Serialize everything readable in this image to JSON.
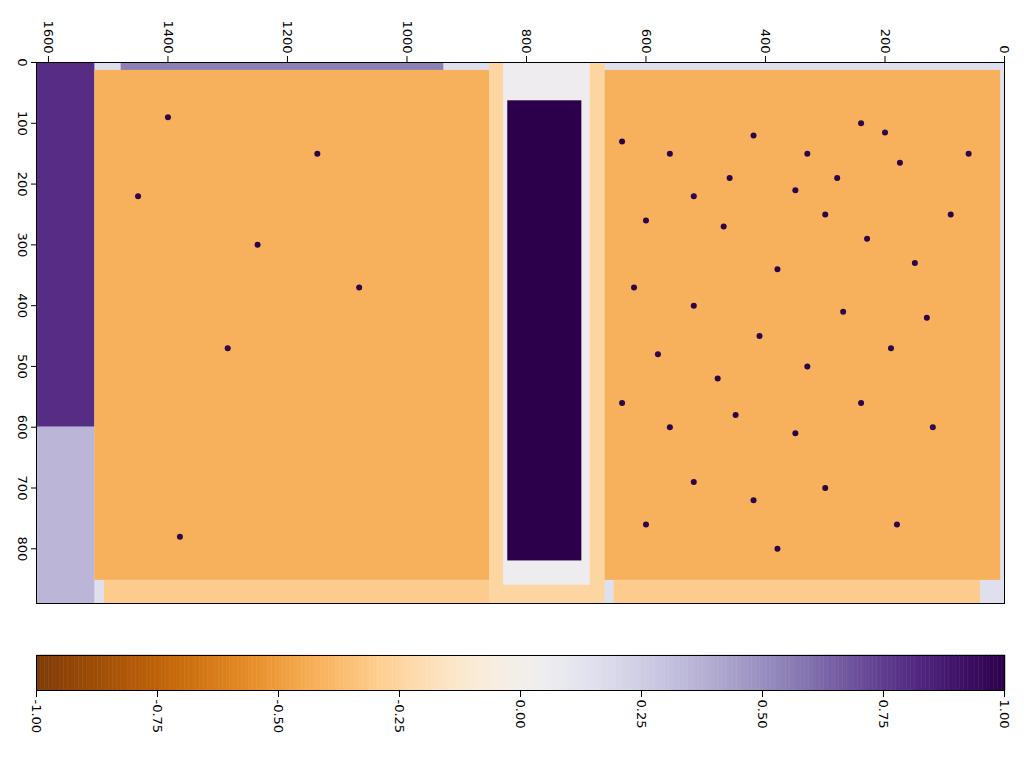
{
  "chart_data": {
    "type": "heatmap",
    "xlim": [
      0,
      890
    ],
    "ylim": [
      0,
      1620
    ],
    "xticks": [
      0,
      100,
      200,
      300,
      400,
      500,
      600,
      700,
      800
    ],
    "yticks": [
      0,
      200,
      400,
      600,
      800,
      1000,
      1200,
      1400,
      1600
    ],
    "regions": [
      {
        "x0": 0,
        "x1": 890,
        "y0": 0,
        "y1": 1620,
        "value": 0.15
      },
      {
        "x0": 0,
        "x1": 600,
        "y0": 1524,
        "y1": 1620,
        "value": 0.8
      },
      {
        "x0": 600,
        "x1": 890,
        "y0": 1524,
        "y1": 1620,
        "value": 0.35
      },
      {
        "x0": 0,
        "x1": 30,
        "y0": 940,
        "y1": 1480,
        "value": 0.55
      },
      {
        "x0": 13,
        "x1": 852,
        "y0": 863,
        "y1": 1524,
        "value": -0.42
      },
      {
        "x0": 852,
        "x1": 890,
        "y0": 863,
        "y1": 1508,
        "value": -0.3
      },
      {
        "x0": 0,
        "x1": 890,
        "y0": 670,
        "y1": 863,
        "value": -0.25
      },
      {
        "x0": 0,
        "x1": 860,
        "y0": 695,
        "y1": 840,
        "value": 0.05
      },
      {
        "x0": 63,
        "x1": 820,
        "y0": 709,
        "y1": 833,
        "value": 1
      },
      {
        "x0": 13,
        "x1": 852,
        "y0": 8,
        "y1": 670,
        "value": -0.42
      },
      {
        "x0": 852,
        "x1": 890,
        "y0": 42,
        "y1": 655,
        "value": -0.3
      }
    ],
    "spots": [
      {
        "x": 115,
        "y": 200,
        "value": 1
      },
      {
        "x": 100,
        "y": 240,
        "value": 1
      },
      {
        "x": 190,
        "y": 280,
        "value": 1
      },
      {
        "x": 150,
        "y": 330,
        "value": 1
      },
      {
        "x": 165,
        "y": 175,
        "value": 1
      },
      {
        "x": 210,
        "y": 350,
        "value": 1
      },
      {
        "x": 250,
        "y": 300,
        "value": 1
      },
      {
        "x": 120,
        "y": 420,
        "value": 1
      },
      {
        "x": 190,
        "y": 460,
        "value": 1
      },
      {
        "x": 290,
        "y": 230,
        "value": 1
      },
      {
        "x": 330,
        "y": 150,
        "value": 1
      },
      {
        "x": 340,
        "y": 380,
        "value": 1
      },
      {
        "x": 270,
        "y": 470,
        "value": 1
      },
      {
        "x": 220,
        "y": 520,
        "value": 1
      },
      {
        "x": 150,
        "y": 560,
        "value": 1
      },
      {
        "x": 260,
        "y": 600,
        "value": 1
      },
      {
        "x": 410,
        "y": 270,
        "value": 1
      },
      {
        "x": 470,
        "y": 190,
        "value": 1
      },
      {
        "x": 500,
        "y": 330,
        "value": 1
      },
      {
        "x": 450,
        "y": 410,
        "value": 1
      },
      {
        "x": 400,
        "y": 520,
        "value": 1
      },
      {
        "x": 480,
        "y": 580,
        "value": 1
      },
      {
        "x": 370,
        "y": 620,
        "value": 1
      },
      {
        "x": 560,
        "y": 240,
        "value": 1
      },
      {
        "x": 600,
        "y": 120,
        "value": 1
      },
      {
        "x": 610,
        "y": 350,
        "value": 1
      },
      {
        "x": 580,
        "y": 450,
        "value": 1
      },
      {
        "x": 600,
        "y": 560,
        "value": 1
      },
      {
        "x": 560,
        "y": 640,
        "value": 1
      },
      {
        "x": 700,
        "y": 300,
        "value": 1
      },
      {
        "x": 760,
        "y": 180,
        "value": 1
      },
      {
        "x": 720,
        "y": 420,
        "value": 1
      },
      {
        "x": 690,
        "y": 520,
        "value": 1
      },
      {
        "x": 760,
        "y": 600,
        "value": 1
      },
      {
        "x": 800,
        "y": 380,
        "value": 1
      },
      {
        "x": 250,
        "y": 90,
        "value": 1
      },
      {
        "x": 150,
        "y": 60,
        "value": 1
      },
      {
        "x": 420,
        "y": 130,
        "value": 1
      },
      {
        "x": 130,
        "y": 640,
        "value": 1
      },
      {
        "x": 520,
        "y": 480,
        "value": 1
      },
      {
        "x": 90,
        "y": 1400,
        "value": 1
      },
      {
        "x": 300,
        "y": 1250,
        "value": 1
      },
      {
        "x": 470,
        "y": 1300,
        "value": 1
      },
      {
        "x": 150,
        "y": 1150,
        "value": 1
      },
      {
        "x": 220,
        "y": 1450,
        "value": 1
      },
      {
        "x": 780,
        "y": 1380,
        "value": 1
      },
      {
        "x": 370,
        "y": 1080,
        "value": 1
      }
    ],
    "colorbar": {
      "range": [
        -1,
        1
      ],
      "ticks": [
        {
          "value": -1,
          "label": "-1.00"
        },
        {
          "value": -0.75,
          "label": "-0.75"
        },
        {
          "value": -0.5,
          "label": "-0.50"
        },
        {
          "value": -0.25,
          "label": "-0.25"
        },
        {
          "value": 0,
          "label": "0.00"
        },
        {
          "value": 0.25,
          "label": "0.25"
        },
        {
          "value": 0.5,
          "label": "0.50"
        },
        {
          "value": 0.75,
          "label": "0.75"
        },
        {
          "value": 1,
          "label": "1.00"
        }
      ]
    }
  }
}
